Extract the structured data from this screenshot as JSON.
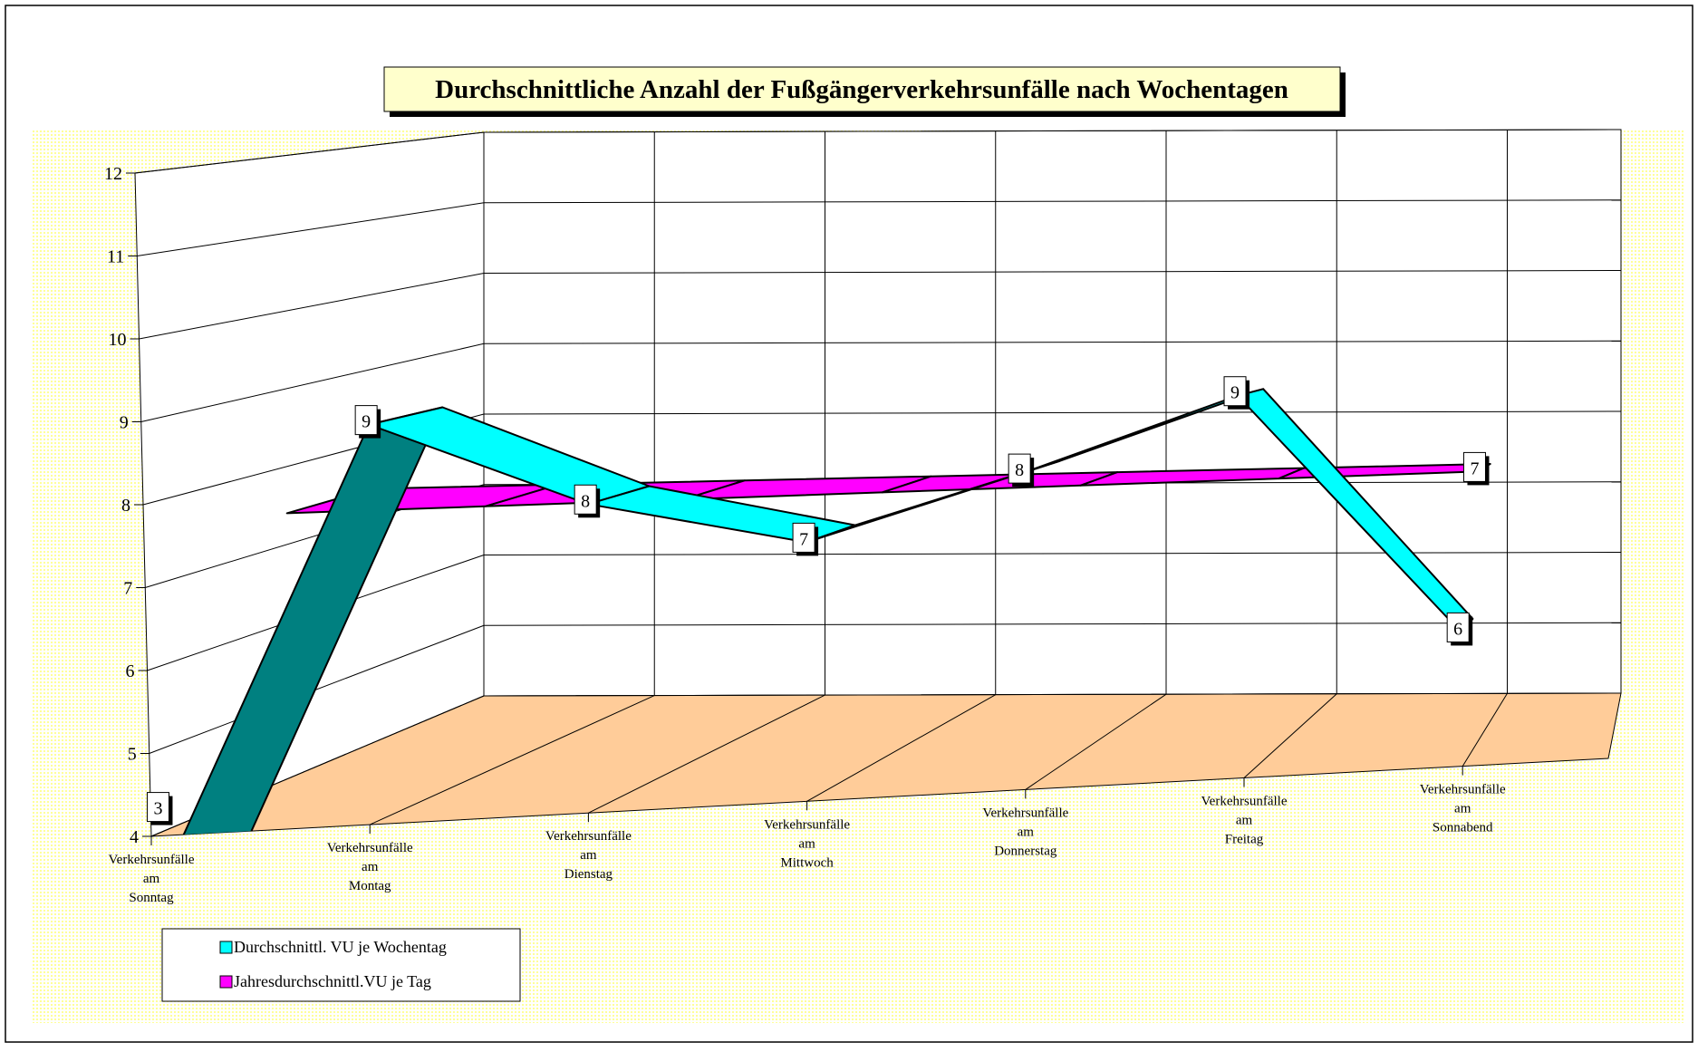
{
  "chart_data": {
    "type": "line3d",
    "title": "Durchschnittliche Anzahl der Fußgängerverkehrsunfälle nach Wochentagen",
    "categories": [
      "Verkehrsunfälle am Sonntag",
      "Verkehrsunfälle am Montag",
      "Verkehrsunfälle am Dienstag",
      "Verkehrsunfälle am Mittwoch",
      "Verkehrsunfälle am Donnerstag",
      "Verkehrsunfälle am Freitag",
      "Verkehrsunfälle am Sonnabend"
    ],
    "series": [
      {
        "name": "Durchschnittl. VU je Wochentag",
        "color": "#00ffff",
        "values": [
          3.4,
          8.8,
          7.7,
          7.1,
          7.8,
          8.6,
          5.6
        ],
        "value_labels": [
          "3",
          "9",
          "8",
          "7",
          "8",
          "9",
          "6"
        ]
      },
      {
        "name": "Jahresdurchschnittl.VU je Tag",
        "color": "#ff00ff",
        "values": [
          7.4,
          7.4,
          7.4,
          7.4,
          7.4,
          7.4,
          7.4
        ],
        "value_labels": [
          null,
          null,
          null,
          null,
          null,
          null,
          "7"
        ]
      }
    ],
    "ylim": [
      4,
      12
    ],
    "yticks": [
      4,
      5,
      6,
      7,
      8,
      9,
      10,
      11,
      12
    ],
    "grid": true
  }
}
